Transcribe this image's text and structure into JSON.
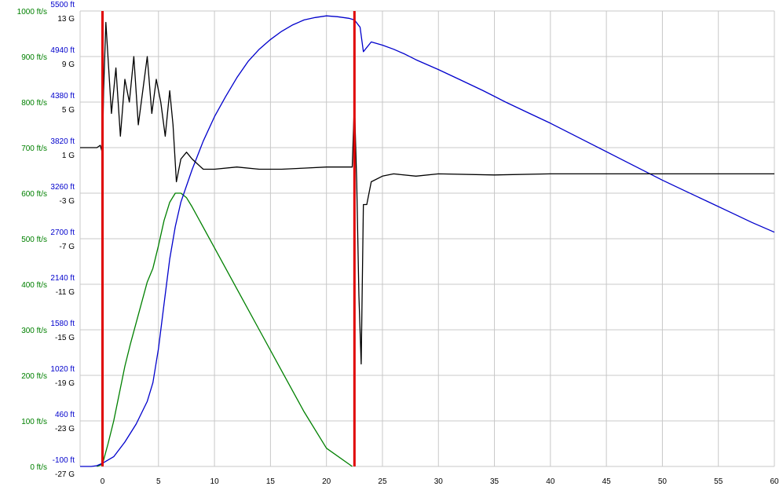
{
  "chart_data": {
    "type": "line",
    "title": "",
    "xlabel": "",
    "x_ticks": [
      0,
      5,
      10,
      15,
      20,
      25,
      30,
      35,
      40,
      45,
      50,
      55,
      60
    ],
    "xlim": [
      -2,
      60
    ],
    "axes": {
      "velocity": {
        "color": "#008000",
        "ticks": [
          "0 ft/s",
          "100 ft/s",
          "200 ft/s",
          "300 ft/s",
          "400 ft/s",
          "500 ft/s",
          "600 ft/s",
          "700 ft/s",
          "800 ft/s",
          "900 ft/s",
          "1000 ft/s"
        ]
      },
      "altitude": {
        "color": "#0000cc",
        "ticks": [
          "-100 ft",
          "460 ft",
          "1020 ft",
          "1580 ft",
          "2140 ft",
          "2700 ft",
          "3260 ft",
          "3820 ft",
          "4380 ft",
          "4940 ft",
          "5500 ft"
        ]
      },
      "acceleration": {
        "color": "#000000",
        "ticks": [
          "-27 G",
          "-23 G",
          "-19 G",
          "-15 G",
          "-11 G",
          "-7 G",
          "-3 G",
          "1 G",
          "5 G",
          "9 G",
          "13 G"
        ]
      }
    },
    "grid": true,
    "markers": {
      "color": "#e00000",
      "x": [
        0,
        22.5
      ]
    },
    "series": [
      {
        "key": "velocity",
        "color": "#008000",
        "x": [
          -0.5,
          0,
          0.5,
          1,
          1.5,
          2,
          2.5,
          3,
          3.5,
          4,
          4.5,
          5,
          5.5,
          6,
          6.5,
          7,
          7.5,
          8,
          10,
          12,
          14,
          16,
          18,
          20,
          22.3
        ],
        "y": [
          0,
          5,
          50,
          100,
          160,
          220,
          270,
          315,
          360,
          405,
          435,
          485,
          540,
          580,
          600,
          600,
          590,
          570,
          480,
          390,
          300,
          210,
          120,
          40,
          0
        ]
      },
      {
        "key": "altitude",
        "color": "#0000cc",
        "x": [
          -2,
          -1,
          -0.5,
          0,
          1,
          2,
          3,
          4,
          4.5,
          5,
          5.5,
          6,
          6.5,
          7,
          8,
          9,
          10,
          11,
          12,
          13,
          14,
          15,
          16,
          17,
          18,
          19,
          20,
          21,
          22,
          22.5,
          23,
          23.3,
          24,
          25,
          26,
          27,
          28,
          30,
          32,
          34,
          36,
          38,
          40,
          42,
          44,
          46,
          48,
          50,
          52,
          54,
          56,
          58,
          60
        ],
        "y": [
          -100,
          -100,
          -90,
          -60,
          20,
          200,
          420,
          700,
          930,
          1350,
          1900,
          2450,
          2850,
          3150,
          3550,
          3900,
          4200,
          4450,
          4680,
          4880,
          5030,
          5150,
          5250,
          5330,
          5390,
          5420,
          5440,
          5430,
          5410,
          5390,
          5300,
          5000,
          5120,
          5080,
          5030,
          4970,
          4900,
          4780,
          4650,
          4520,
          4380,
          4250,
          4120,
          3980,
          3840,
          3700,
          3560,
          3420,
          3290,
          3160,
          3030,
          2900,
          2780
        ]
      },
      {
        "key": "acceleration",
        "color": "#000000",
        "x": [
          -2,
          -0.5,
          -0.2,
          0,
          0.1,
          0.3,
          0.8,
          1.2,
          1.6,
          2,
          2.4,
          2.8,
          3.2,
          3.6,
          4,
          4.4,
          4.8,
          5.2,
          5.6,
          6,
          6.3,
          6.6,
          7,
          7.5,
          8,
          9,
          10,
          12,
          14,
          16,
          18,
          20,
          22,
          22.3,
          22.5,
          22.7,
          22.9,
          23.1,
          23.3,
          23.6,
          24,
          25,
          26,
          28,
          30,
          35,
          40,
          45,
          50,
          55,
          60
        ],
        "y": [
          1,
          1,
          1.2,
          0.5,
          6,
          12,
          4,
          8,
          2,
          7,
          5,
          9,
          3,
          6,
          9,
          4,
          7,
          5,
          2,
          6,
          3,
          -2,
          0,
          0.6,
          0,
          -0.9,
          -0.9,
          -0.7,
          -0.9,
          -0.9,
          -0.8,
          -0.7,
          -0.7,
          -0.7,
          5,
          -2,
          -12,
          -18,
          -4,
          -4,
          -2,
          -1.5,
          -1.3,
          -1.5,
          -1.3,
          -1.4,
          -1.3,
          -1.3,
          -1.3,
          -1.3,
          -1.3
        ]
      }
    ]
  }
}
